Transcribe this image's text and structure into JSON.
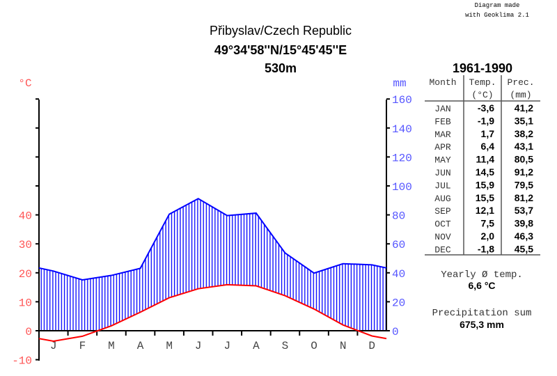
{
  "credit": [
    "Diagram made",
    "with Geoklima 2.1"
  ],
  "header": {
    "station": "Přibyslav/Czech Republic",
    "coordinates": "49°34'58''N/15°45'45''E",
    "elevation": "530m"
  },
  "colors": {
    "temperature": "#ff0000",
    "temperature_labels": "#ff5555",
    "precipitation": "#0000ff",
    "precipitation_labels": "#5555ff",
    "axis": "#000000"
  },
  "chart_data": {
    "type": "line",
    "x": [
      "J",
      "F",
      "M",
      "A",
      "M",
      "J",
      "J",
      "A",
      "S",
      "O",
      "N",
      "D"
    ],
    "left_axis": {
      "label": "°C",
      "ticks": [
        -10,
        0,
        10,
        20,
        30,
        40
      ],
      "range": [
        -10,
        80
      ]
    },
    "right_axis": {
      "label": "mm",
      "ticks": [
        0,
        20,
        40,
        60,
        80,
        100,
        120,
        140,
        160
      ],
      "range": [
        0,
        160
      ]
    },
    "series": [
      {
        "name": "Temp.",
        "unit": "°C",
        "values": [
          -3.6,
          -1.9,
          1.7,
          6.4,
          11.4,
          14.5,
          15.9,
          15.5,
          12.1,
          7.5,
          2.0,
          -1.8
        ]
      },
      {
        "name": "Prec.",
        "unit": "mm",
        "values": [
          41.2,
          35.1,
          38.2,
          43.1,
          80.5,
          91.2,
          79.5,
          81.2,
          53.7,
          39.8,
          46.3,
          45.5
        ]
      }
    ]
  },
  "table": {
    "period": "1961-1990",
    "headers": [
      "Month",
      "Temp.",
      "Prec."
    ],
    "units": [
      "",
      "(°C)",
      "(mm)"
    ],
    "rows": [
      [
        "JAN",
        "-3,6",
        "41,2"
      ],
      [
        "FEB",
        "-1,9",
        "35,1"
      ],
      [
        "MAR",
        "1,7",
        "38,2"
      ],
      [
        "APR",
        "6,4",
        "43,1"
      ],
      [
        "MAY",
        "11,4",
        "80,5"
      ],
      [
        "JUN",
        "14,5",
        "91,2"
      ],
      [
        "JUL",
        "15,9",
        "79,5"
      ],
      [
        "AUG",
        "15,5",
        "81,2"
      ],
      [
        "SEP",
        "12,1",
        "53,7"
      ],
      [
        "OCT",
        "7,5",
        "39,8"
      ],
      [
        "NOV",
        "2,0",
        "46,3"
      ],
      [
        "DEC",
        "-1,8",
        "45,5"
      ]
    ]
  },
  "summary": {
    "yearly_temp_label": "Yearly Ø temp.",
    "yearly_temp_value": "6,6 °C",
    "precip_sum_label": "Precipitation sum",
    "precip_sum_value": "675,3 mm"
  }
}
